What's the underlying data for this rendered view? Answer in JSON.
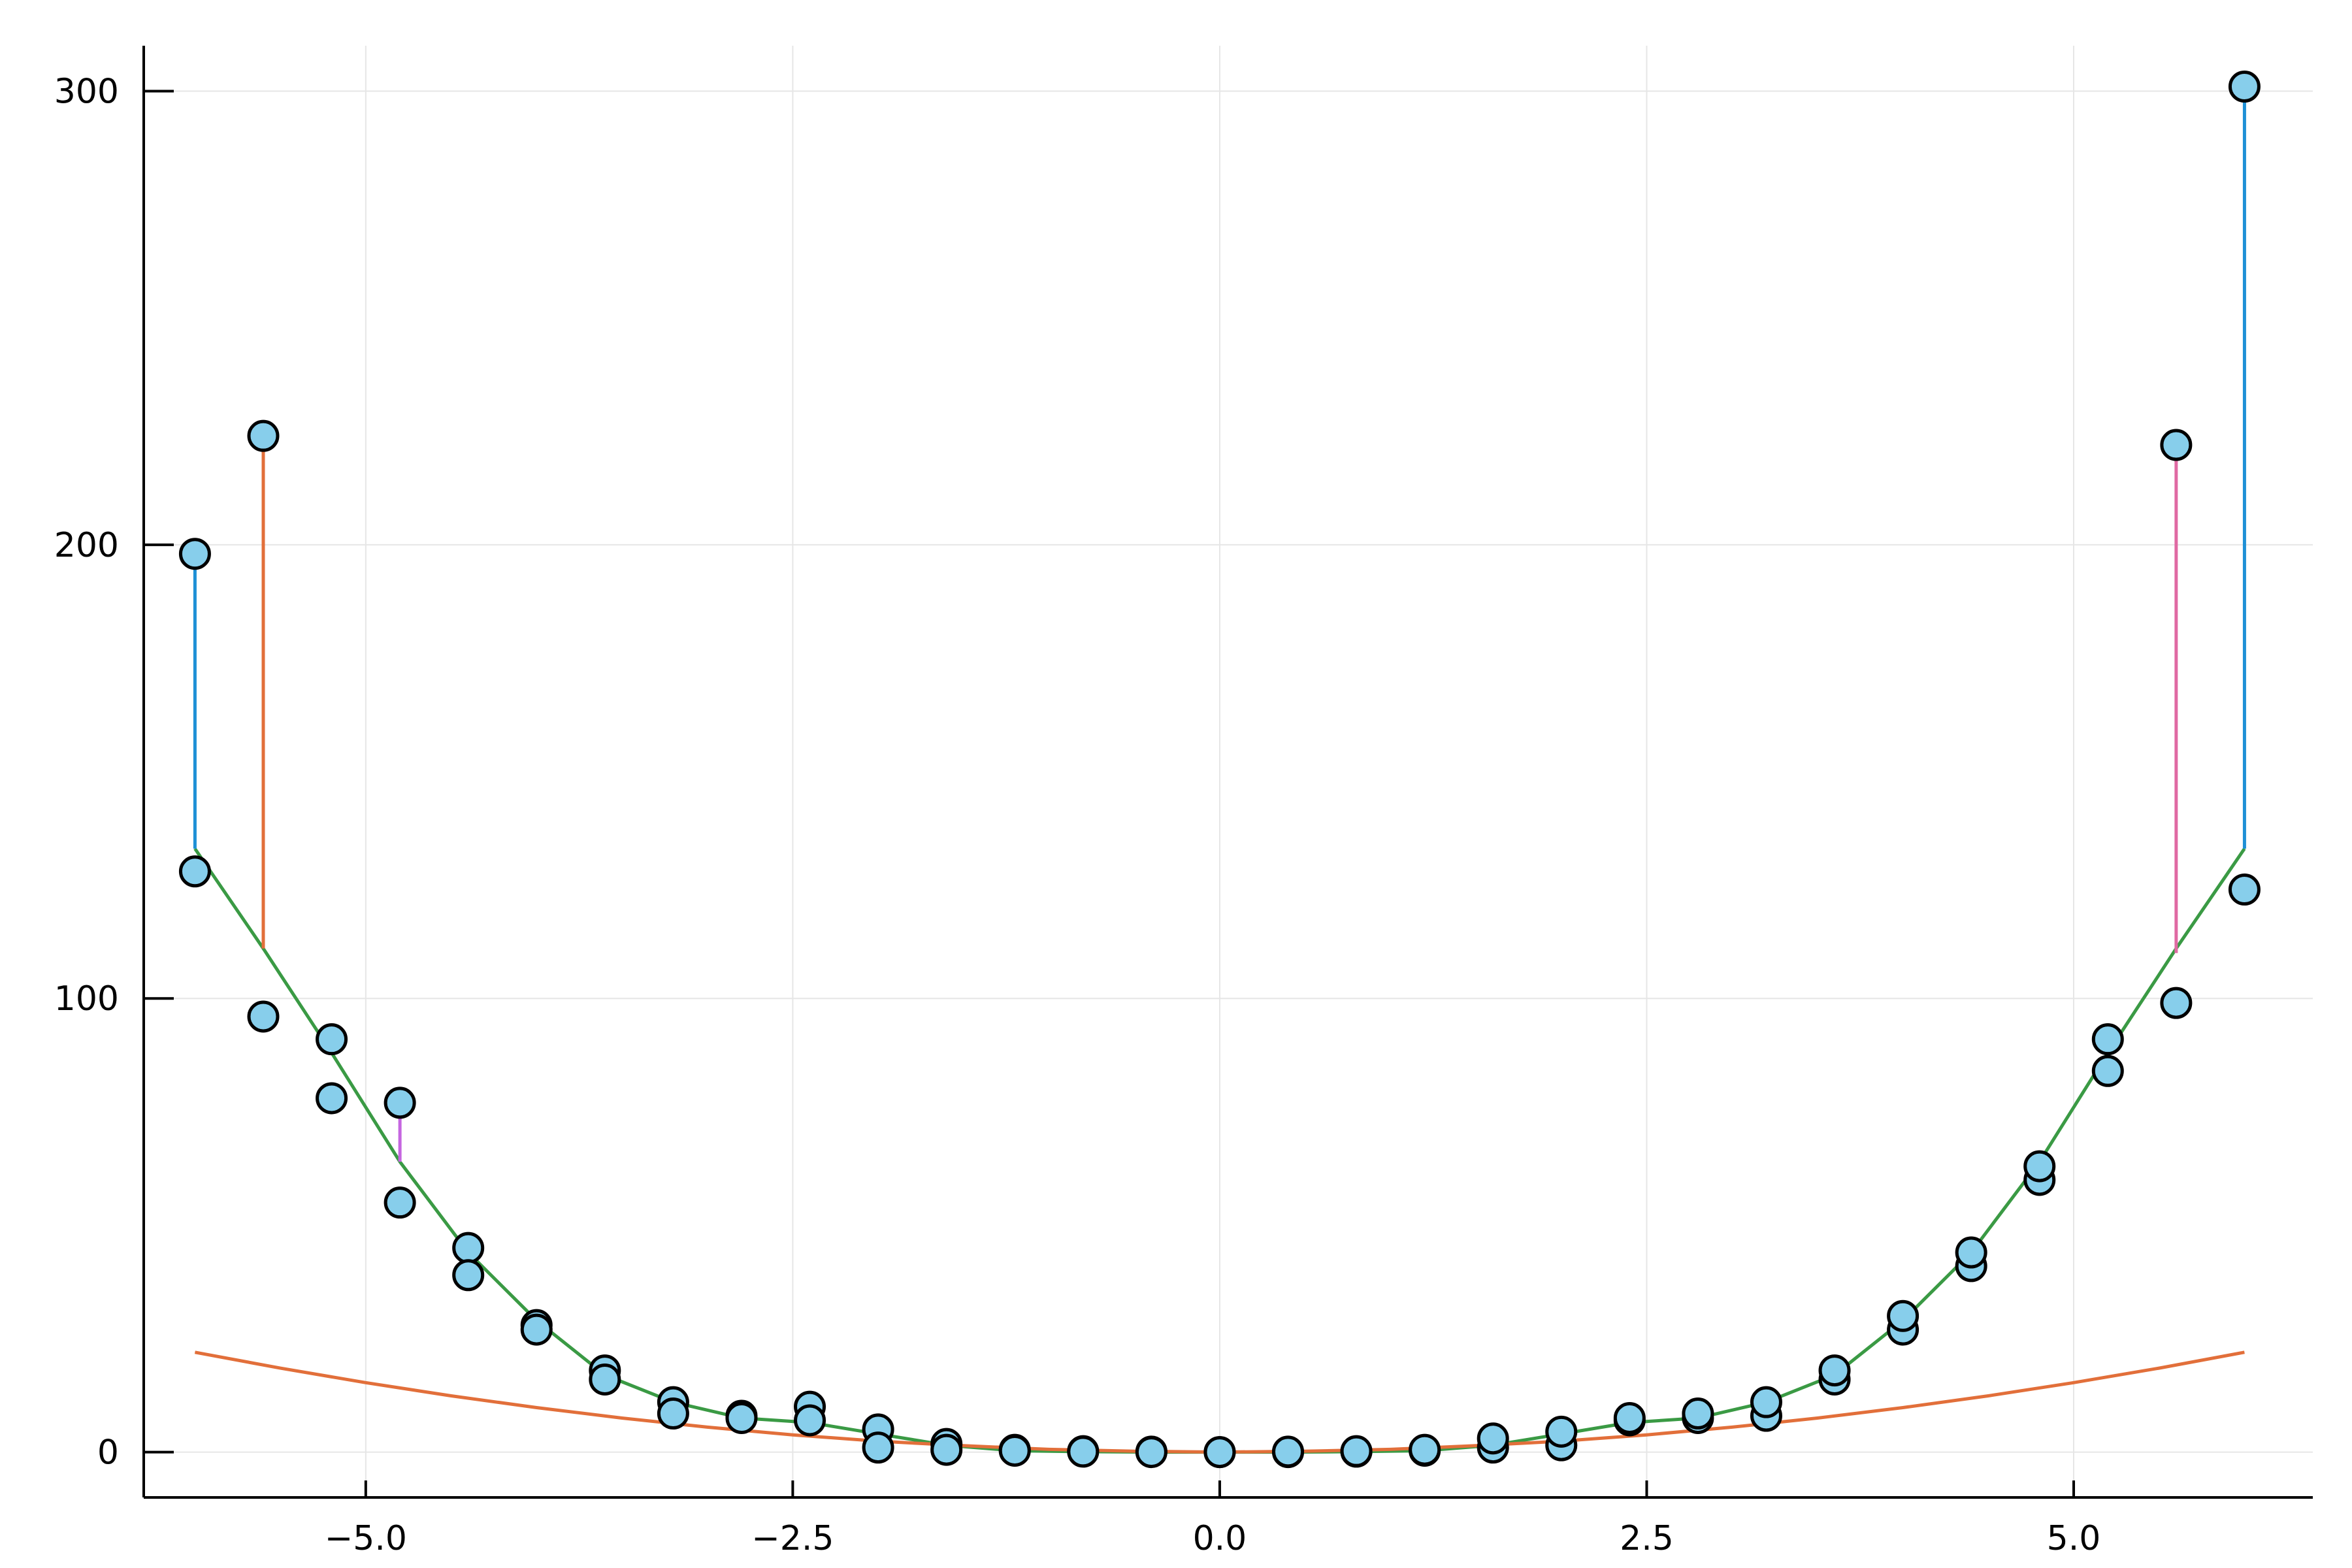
{
  "chart_data": {
    "type": "scatter",
    "title": "",
    "xlabel": "",
    "ylabel": "",
    "xlim": [
      -6.3,
      6.4
    ],
    "ylim": [
      -10,
      310
    ],
    "grid": true,
    "legend": "none",
    "x_ticks": [
      {
        "value": -5.0,
        "label": "−5.0"
      },
      {
        "value": -2.5,
        "label": "−2.5"
      },
      {
        "value": 0.0,
        "label": "0.0"
      },
      {
        "value": 2.5,
        "label": "2.5"
      },
      {
        "value": 5.0,
        "label": "5.0"
      }
    ],
    "y_ticks": [
      {
        "value": 0,
        "label": "0"
      },
      {
        "value": 100,
        "label": "100"
      },
      {
        "value": 200,
        "label": "200"
      },
      {
        "value": 300,
        "label": "300"
      }
    ],
    "colors": {
      "marker_fill": "#87ceeb",
      "marker_edge": "#000000",
      "grid": "#e6e6e6",
      "axis": "#000000",
      "fit_quartic": "#3a9a44",
      "fit_quadratic": "#e26f3a"
    },
    "points": [
      {
        "x": -6.0,
        "y": 198
      },
      {
        "x": -6.0,
        "y": 128
      },
      {
        "x": -5.6,
        "y": 224
      },
      {
        "x": -5.6,
        "y": 96
      },
      {
        "x": -5.2,
        "y": 91
      },
      {
        "x": -5.2,
        "y": 78
      },
      {
        "x": -4.8,
        "y": 77
      },
      {
        "x": -4.8,
        "y": 55
      },
      {
        "x": -4.4,
        "y": 45
      },
      {
        "x": -4.4,
        "y": 39
      },
      {
        "x": -4.0,
        "y": 28
      },
      {
        "x": -4.0,
        "y": 27
      },
      {
        "x": -3.6,
        "y": 18
      },
      {
        "x": -3.6,
        "y": 16
      },
      {
        "x": -3.2,
        "y": 11
      },
      {
        "x": -3.2,
        "y": 8.5
      },
      {
        "x": -2.8,
        "y": 8
      },
      {
        "x": -2.8,
        "y": 7.5
      },
      {
        "x": -2.4,
        "y": 10
      },
      {
        "x": -2.4,
        "y": 7
      },
      {
        "x": -2.0,
        "y": 5
      },
      {
        "x": -2.0,
        "y": 1
      },
      {
        "x": -1.6,
        "y": 1.8
      },
      {
        "x": -1.6,
        "y": 0.5
      },
      {
        "x": -1.2,
        "y": 0.5
      },
      {
        "x": -1.2,
        "y": 0.3
      },
      {
        "x": -0.8,
        "y": 0.2
      },
      {
        "x": -0.8,
        "y": 0.1
      },
      {
        "x": -0.4,
        "y": 0.1
      },
      {
        "x": -0.4,
        "y": 0
      },
      {
        "x": 0.0,
        "y": 0
      },
      {
        "x": 0.0,
        "y": 0
      },
      {
        "x": 0.4,
        "y": 0
      },
      {
        "x": 0.4,
        "y": 0.1
      },
      {
        "x": 0.8,
        "y": 0.1
      },
      {
        "x": 0.8,
        "y": 0.2
      },
      {
        "x": 1.2,
        "y": 0.3
      },
      {
        "x": 1.2,
        "y": 0.5
      },
      {
        "x": 1.6,
        "y": 1
      },
      {
        "x": 1.6,
        "y": 3
      },
      {
        "x": 2.0,
        "y": 1.5
      },
      {
        "x": 2.0,
        "y": 4.5
      },
      {
        "x": 2.4,
        "y": 7
      },
      {
        "x": 2.4,
        "y": 7.5
      },
      {
        "x": 2.8,
        "y": 7.5
      },
      {
        "x": 2.8,
        "y": 8.5
      },
      {
        "x": 3.2,
        "y": 8
      },
      {
        "x": 3.2,
        "y": 11
      },
      {
        "x": 3.6,
        "y": 16
      },
      {
        "x": 3.6,
        "y": 18
      },
      {
        "x": 4.0,
        "y": 27
      },
      {
        "x": 4.0,
        "y": 30
      },
      {
        "x": 4.4,
        "y": 41
      },
      {
        "x": 4.4,
        "y": 44
      },
      {
        "x": 4.8,
        "y": 60
      },
      {
        "x": 4.8,
        "y": 63
      },
      {
        "x": 5.2,
        "y": 84
      },
      {
        "x": 5.2,
        "y": 91
      },
      {
        "x": 5.6,
        "y": 99
      },
      {
        "x": 5.6,
        "y": 222
      },
      {
        "x": 6.0,
        "y": 124
      },
      {
        "x": 6.0,
        "y": 301
      }
    ],
    "residual_segments": [
      {
        "x": -6.0,
        "y1": 133,
        "y2": 198,
        "color": "#1e90d6"
      },
      {
        "x": -5.6,
        "y1": 111,
        "y2": 224,
        "color": "#e26f3a"
      },
      {
        "x": -4.8,
        "y1": 64,
        "y2": 77,
        "color": "#c566e0"
      },
      {
        "x": 5.6,
        "y1": 110,
        "y2": 222,
        "color": "#e06aa3"
      },
      {
        "x": 6.0,
        "y1": 133,
        "y2": 301,
        "color": "#1e90d6"
      }
    ],
    "series": [
      {
        "color": "#3a9a44",
        "x": [
          -6.0,
          -5.6,
          -5.2,
          -4.8,
          -4.4,
          -4.0,
          -3.6,
          -3.2,
          -2.8,
          -2.4,
          -2.0,
          -1.6,
          -1.2,
          -0.8,
          -0.4,
          0.0,
          0.4,
          0.8,
          1.2,
          1.6,
          2.0,
          2.4,
          2.8,
          3.2,
          3.6,
          4.0,
          4.4,
          4.8,
          5.2,
          5.6,
          6.0
        ],
        "y": [
          133,
          111,
          88,
          64,
          44,
          29,
          17,
          11,
          7.5,
          6.5,
          4,
          1.5,
          0.3,
          0.1,
          0,
          0,
          0,
          0.1,
          0.3,
          1.5,
          4,
          6.5,
          7.5,
          11,
          17,
          29,
          44,
          64,
          88,
          111,
          133
        ]
      },
      {
        "color": "#e26f3a",
        "x": [
          -6.0,
          -5.5,
          -5.0,
          -4.5,
          -4.0,
          -3.5,
          -3.0,
          -2.5,
          -2.0,
          -1.5,
          -1.0,
          -0.5,
          0.0,
          0.5,
          1.0,
          1.5,
          2.0,
          2.5,
          3.0,
          3.5,
          4.0,
          4.5,
          5.0,
          5.5,
          6.0
        ],
        "y": [
          22,
          18.5,
          15.3,
          12.4,
          9.8,
          7.5,
          5.5,
          3.8,
          2.4,
          1.4,
          0.6,
          0.2,
          0,
          0.2,
          0.6,
          1.4,
          2.4,
          3.8,
          5.5,
          7.5,
          9.8,
          12.4,
          15.3,
          18.5,
          22
        ]
      }
    ]
  }
}
